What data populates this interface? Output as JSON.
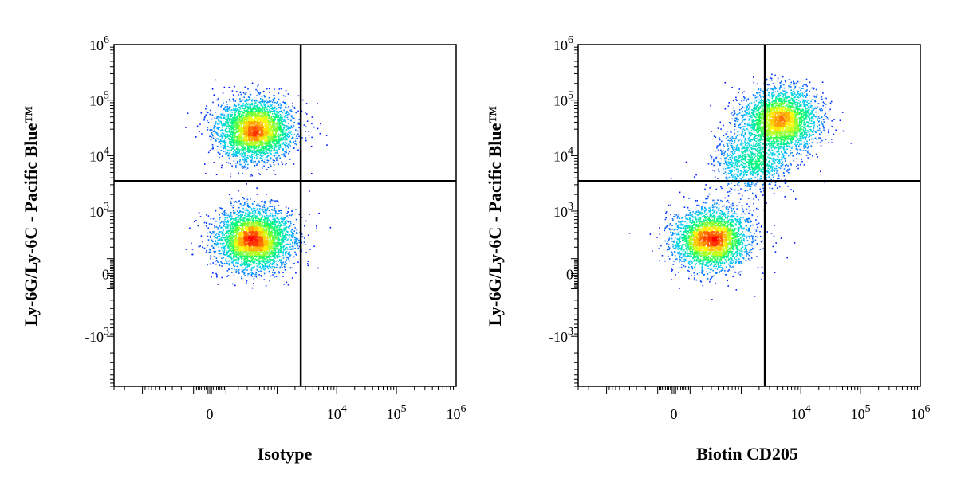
{
  "chart_data": [
    {
      "type": "scatter",
      "style": "density-dot-plot",
      "color_scale": [
        "#0000ff",
        "#00c8ff",
        "#00ff64",
        "#ffff00",
        "#ff0000"
      ],
      "xlabel": "Isotype",
      "ylabel": "Ly-6G/Ly-6C - Pacific Blue™",
      "x_scale": "biexponential",
      "y_scale": "biexponential",
      "xlim": [
        -3000,
        1000000
      ],
      "ylim": [
        -8000,
        1000000
      ],
      "x_ticks": [
        {
          "base": "0",
          "exp": "",
          "value": 0
        },
        {
          "base": "10",
          "exp": "4",
          "value": 10000
        },
        {
          "base": "10",
          "exp": "5",
          "value": 100000
        },
        {
          "base": "10",
          "exp": "6",
          "value": 1000000
        }
      ],
      "y_ticks": [
        {
          "base": "10",
          "exp": "6",
          "value": 1000000
        },
        {
          "base": "10",
          "exp": "5",
          "value": 100000
        },
        {
          "base": "10",
          "exp": "4",
          "value": 10000
        },
        {
          "base": "10",
          "exp": "3",
          "value": 1000
        },
        {
          "base": "0",
          "exp": "",
          "value": 0
        },
        {
          "base": "-10",
          "exp": "3",
          "value": -1000
        }
      ],
      "quadrant_gate": {
        "x": 2500,
        "y": 3500
      },
      "populations": [
        {
          "x_center": 400,
          "y_center": 30000,
          "weight": 0.48
        },
        {
          "x_center": 400,
          "y_center": 300,
          "weight": 0.52
        }
      ],
      "event_count": 7000
    },
    {
      "type": "scatter",
      "style": "density-dot-plot",
      "color_scale": [
        "#0000ff",
        "#00c8ff",
        "#00ff64",
        "#ffff00",
        "#ff0000"
      ],
      "xlabel": "Biotin CD205",
      "ylabel": "Ly-6G/Ly-6C - Pacific Blue™",
      "x_scale": "biexponential",
      "y_scale": "biexponential",
      "xlim": [
        -3000,
        1000000
      ],
      "ylim": [
        -8000,
        1000000
      ],
      "x_ticks": [
        {
          "base": "0",
          "exp": "",
          "value": 0
        },
        {
          "base": "10",
          "exp": "4",
          "value": 10000
        },
        {
          "base": "10",
          "exp": "5",
          "value": 100000
        },
        {
          "base": "10",
          "exp": "6",
          "value": 1000000
        }
      ],
      "y_ticks": [
        {
          "base": "10",
          "exp": "6",
          "value": 1000000
        },
        {
          "base": "10",
          "exp": "5",
          "value": 100000
        },
        {
          "base": "10",
          "exp": "4",
          "value": 10000
        },
        {
          "base": "10",
          "exp": "3",
          "value": 1000
        },
        {
          "base": "0",
          "exp": "",
          "value": 0
        },
        {
          "base": "-10",
          "exp": "3",
          "value": -1000
        }
      ],
      "quadrant_gate": {
        "x": 2500,
        "y": 3500
      },
      "populations": [
        {
          "x_center": 4500,
          "y_center": 45000,
          "weight": 0.4
        },
        {
          "x_center": 300,
          "y_center": 300,
          "weight": 0.45
        },
        {
          "x_center": 1500,
          "y_center": 8000,
          "weight": 0.15
        }
      ],
      "event_count": 7000
    }
  ]
}
